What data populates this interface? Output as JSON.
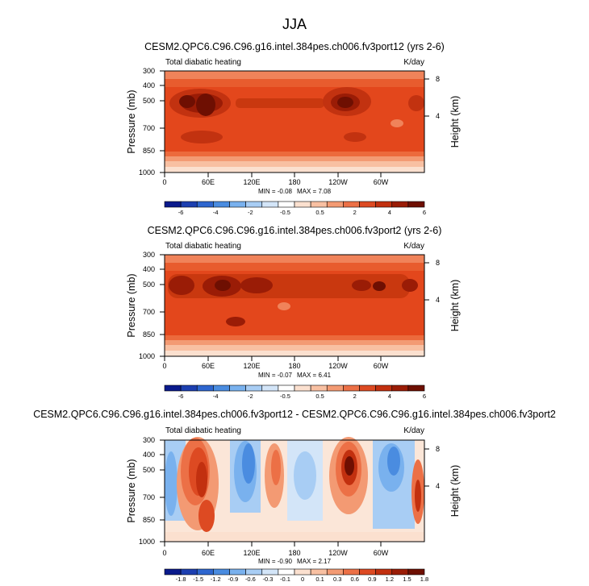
{
  "figure_title": "JJA",
  "chart_data": [
    {
      "type": "heatmap",
      "title": "CESM2.QPC6.C96.C96.g16.intel.384pes.ch006.fv3port12 (yrs 2-6)",
      "left_label": "Total diabatic heating",
      "units": "K/day",
      "ylabel": "Pressure (mb)",
      "ylabel_right": "Height (km)",
      "x_ticks": [
        "0",
        "60E",
        "120E",
        "180",
        "120W",
        "60W"
      ],
      "x_range": [
        0,
        360
      ],
      "y_ticks": [
        300,
        400,
        500,
        700,
        850,
        1000
      ],
      "y_ticks_right": [
        4,
        8
      ],
      "ylim": [
        1000,
        300
      ],
      "min_label": "MIN = -0.08",
      "max_label": "MAX = 7.08",
      "colorbar_labels": [
        "-6",
        "-4",
        "-2",
        "-0.5",
        "0.5",
        "2",
        "4",
        "6"
      ]
    },
    {
      "type": "heatmap",
      "title": "CESM2.QPC6.C96.C96.g16.intel.384pes.ch006.fv3port2 (yrs 2-6)",
      "left_label": "Total diabatic heating",
      "units": "K/day",
      "ylabel": "Pressure (mb)",
      "ylabel_right": "Height (km)",
      "x_ticks": [
        "0",
        "60E",
        "120E",
        "180",
        "120W",
        "60W"
      ],
      "x_range": [
        0,
        360
      ],
      "y_ticks": [
        300,
        400,
        500,
        700,
        850,
        1000
      ],
      "y_ticks_right": [
        4,
        8
      ],
      "ylim": [
        1000,
        300
      ],
      "min_label": "MIN = -0.07",
      "max_label": "MAX = 6.41",
      "colorbar_labels": [
        "-6",
        "-4",
        "-2",
        "-0.5",
        "0.5",
        "2",
        "4",
        "6"
      ]
    },
    {
      "type": "heatmap",
      "title": "CESM2.QPC6.C96.C96.g16.intel.384pes.ch006.fv3port12 - CESM2.QPC6.C96.C96.g16.intel.384pes.ch006.fv3port2",
      "left_label": "Total diabatic heating",
      "units": "K/day",
      "ylabel": "Pressure (mb)",
      "ylabel_right": "Height (km)",
      "x_ticks": [
        "0",
        "60E",
        "120E",
        "180",
        "120W",
        "60W"
      ],
      "x_range": [
        0,
        360
      ],
      "y_ticks": [
        300,
        400,
        500,
        700,
        850,
        1000
      ],
      "y_ticks_right": [
        4,
        8
      ],
      "ylim": [
        1000,
        300
      ],
      "min_label": "MIN = -0.90",
      "max_label": "MAX = 2.17",
      "colorbar_labels": [
        "-1.8",
        "-1.5",
        "-1.2",
        "-0.9",
        "-0.6",
        "-0.3",
        "-0.1",
        "0",
        "0.1",
        "0.3",
        "0.6",
        "0.9",
        "1.2",
        "1.5",
        "1.8"
      ]
    }
  ],
  "palettes": {
    "diverging": [
      "#0a1a8c",
      "#1c3fb0",
      "#2e66cf",
      "#4a8ce0",
      "#79b1ee",
      "#a8cdf4",
      "#d3e5f8",
      "#ffffff",
      "#fbe0cf",
      "#f8c0a2",
      "#f39a73",
      "#ec7046",
      "#dd4a22",
      "#c2300f",
      "#9a1c06",
      "#6e0f02"
    ]
  }
}
